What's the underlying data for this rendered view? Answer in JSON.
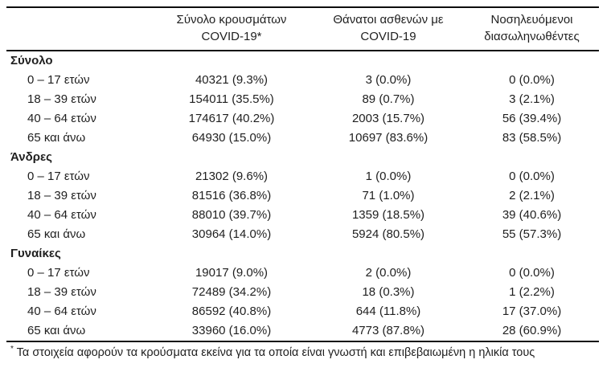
{
  "table": {
    "columns": {
      "rowlabel": {
        "line1": "",
        "line2": ""
      },
      "cases": {
        "line1": "Σύνολο κρουσμάτων",
        "line2": "COVID-19*"
      },
      "deaths": {
        "line1": "Θάνατοι ασθενών με",
        "line2": "COVID-19"
      },
      "intubated": {
        "line1": "Νοσηλευόμενοι",
        "line2": "διασωληνωθέντες"
      }
    },
    "groups": [
      {
        "label": "Σύνολο",
        "rows": [
          {
            "age": "0 – 17 ετών",
            "cases": "40321 (9.3%)",
            "deaths": "3 (0.0%)",
            "intubated": "0 (0.0%)"
          },
          {
            "age": "18 – 39 ετών",
            "cases": "154011 (35.5%)",
            "deaths": "89 (0.7%)",
            "intubated": "3 (2.1%)"
          },
          {
            "age": "40 – 64 ετών",
            "cases": "174617 (40.2%)",
            "deaths": "2003 (15.7%)",
            "intubated": "56 (39.4%)"
          },
          {
            "age": "65 και άνω",
            "cases": "64930 (15.0%)",
            "deaths": "10697 (83.6%)",
            "intubated": "83 (58.5%)"
          }
        ]
      },
      {
        "label": "Άνδρες",
        "rows": [
          {
            "age": "0 – 17 ετών",
            "cases": "21302 (9.6%)",
            "deaths": "1 (0.0%)",
            "intubated": "0 (0.0%)"
          },
          {
            "age": "18 – 39 ετών",
            "cases": "81516 (36.8%)",
            "deaths": "71 (1.0%)",
            "intubated": "2 (2.1%)"
          },
          {
            "age": "40 – 64 ετών",
            "cases": "88010 (39.7%)",
            "deaths": "1359 (18.5%)",
            "intubated": "39 (40.6%)"
          },
          {
            "age": "65 και άνω",
            "cases": "30964 (14.0%)",
            "deaths": "5924 (80.5%)",
            "intubated": "55 (57.3%)"
          }
        ]
      },
      {
        "label": "Γυναίκες",
        "rows": [
          {
            "age": "0 – 17 ετών",
            "cases": "19017 (9.0%)",
            "deaths": "2 (0.0%)",
            "intubated": "0 (0.0%)"
          },
          {
            "age": "18 – 39 ετών",
            "cases": "72489 (34.2%)",
            "deaths": "18 (0.3%)",
            "intubated": "1 (2.2%)"
          },
          {
            "age": "40 – 64 ετών",
            "cases": "86592 (40.8%)",
            "deaths": "644 (11.8%)",
            "intubated": "17 (37.0%)"
          },
          {
            "age": "65 και άνω",
            "cases": "33960 (16.0%)",
            "deaths": "4773 (87.8%)",
            "intubated": "28 (60.9%)"
          }
        ]
      }
    ],
    "footnote": {
      "marker": "*",
      "text": " Τα στοιχεία αφορούν τα κρούσματα εκείνα για τα οποία είναι γνωστή και επιβεβαιωμένη η ηλικία τους"
    }
  },
  "colors": {
    "text": "#1f1f1f",
    "rule": "#0d0d0d",
    "background": "#ffffff"
  }
}
